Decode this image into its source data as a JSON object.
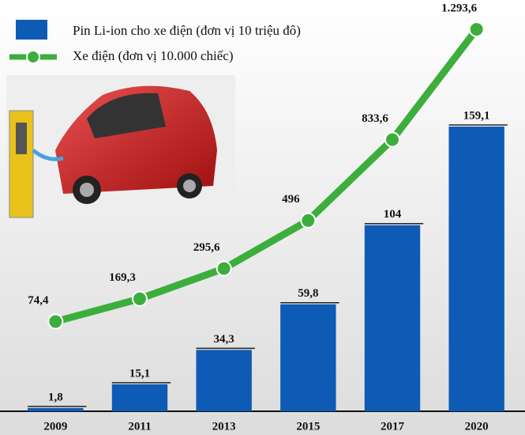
{
  "chart_data": {
    "type": "combo",
    "categories": [
      "2009",
      "2011",
      "2013",
      "2015",
      "2017",
      "2020"
    ],
    "series": [
      {
        "name": "Pin Li-ion cho xe điện (đơn vị 10 triệu đô)",
        "type": "bar",
        "color": "#0e5bb5",
        "values": [
          1.8,
          15.1,
          34.3,
          59.8,
          104,
          159.1
        ],
        "value_labels": [
          "1,8",
          "15,1",
          "34,3",
          "59,8",
          "104",
          "159,1"
        ]
      },
      {
        "name": "Xe điện (đơn vị 10.000 chiếc)",
        "type": "line",
        "axis": "y2",
        "color": "#3cae3c",
        "values": [
          74.4,
          169.3,
          295.6,
          496,
          833.6,
          1293.6
        ],
        "value_labels": [
          "74,4",
          "169,3",
          "295,6",
          "496",
          "833,6",
          "1.293,6"
        ]
      }
    ],
    "ylim": [
      0,
      221
    ],
    "y2lim": [
      -300,
      1350
    ]
  }
}
